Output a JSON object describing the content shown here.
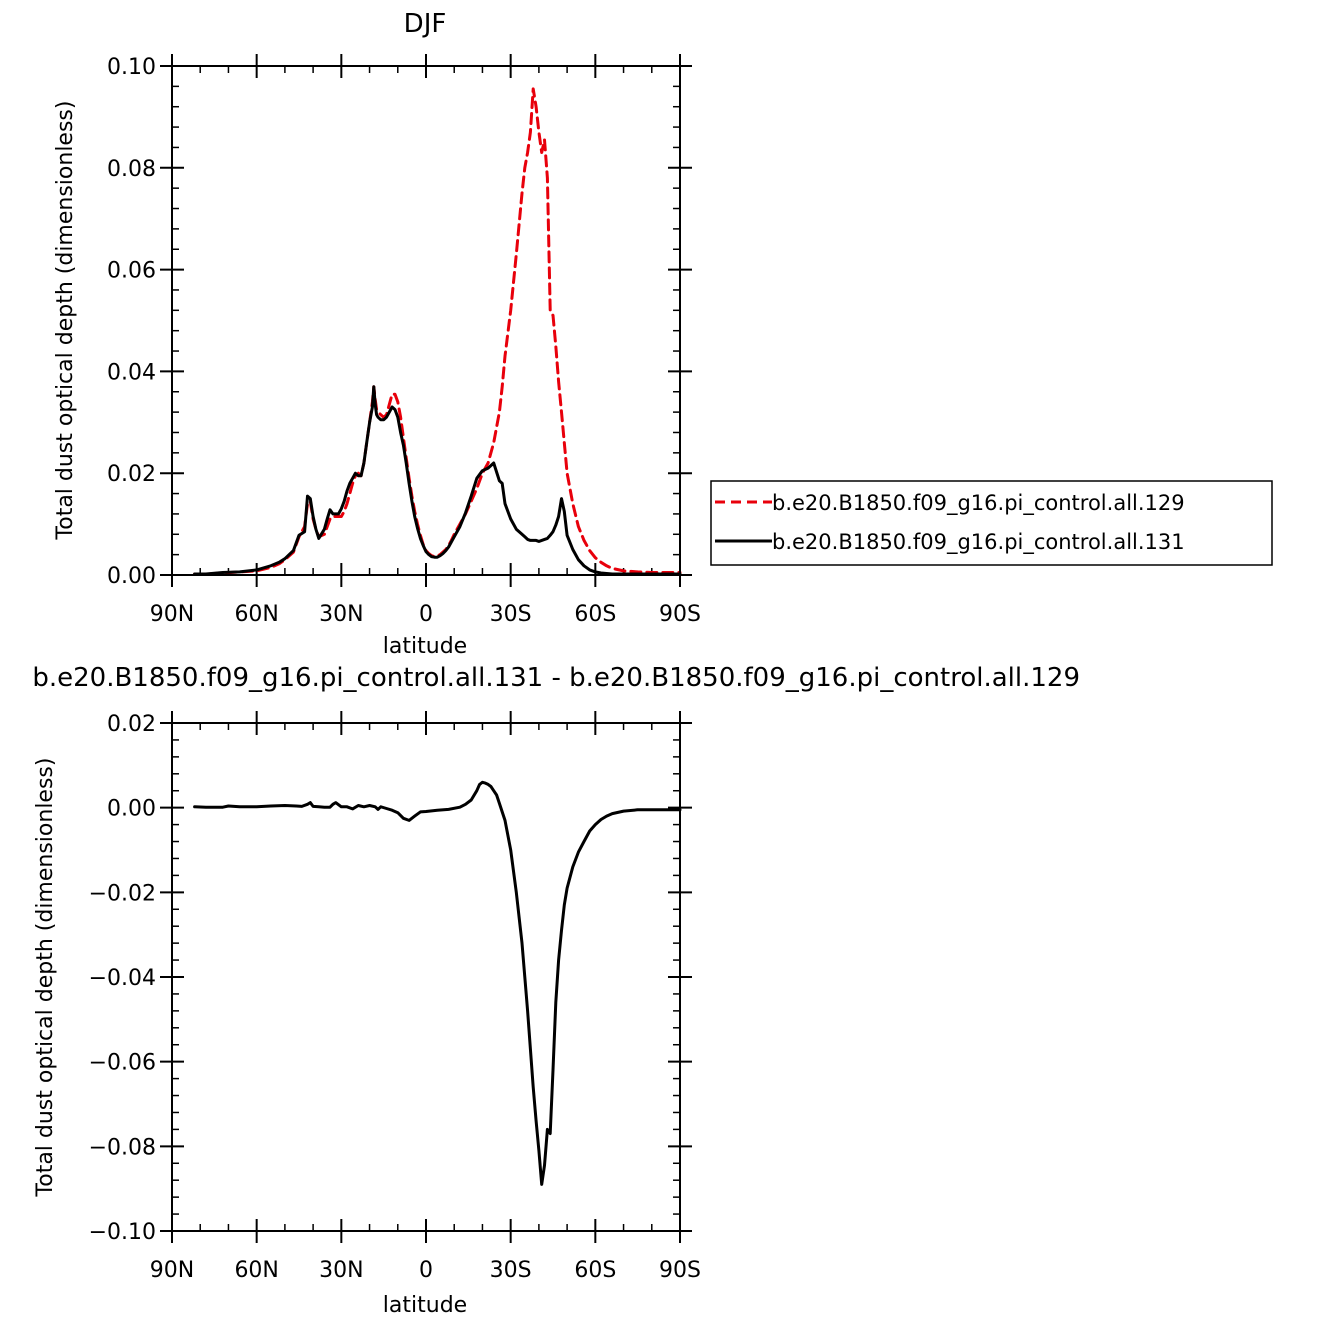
{
  "chart_data": [
    {
      "type": "line",
      "title": "DJF",
      "xlabel": "latitude",
      "ylabel": "Total dust optical depth (dimensionless)",
      "xlim": [
        90,
        -90
      ],
      "ylim": [
        0,
        0.1
      ],
      "x_ticks": [
        90,
        60,
        30,
        0,
        -30,
        -60,
        -90
      ],
      "x_tick_labels": [
        "90N",
        "60N",
        "30N",
        "0",
        "30S",
        "60S",
        "90S"
      ],
      "y_ticks": [
        0,
        0.02,
        0.04,
        0.06,
        0.08,
        0.1
      ],
      "y_tick_labels": [
        "0.00",
        "0.02",
        "0.04",
        "0.06",
        "0.08",
        "0.10"
      ],
      "legend_position": "right",
      "series": [
        {
          "name": "b.e20.B1850.f09_g16.pi_control.all.129",
          "color": "#e8000b",
          "dash": "dashed",
          "x": [
            82,
            78,
            72,
            66,
            60,
            55,
            52,
            50,
            47,
            45,
            43,
            42,
            41,
            40,
            39,
            38,
            36,
            35,
            34,
            33,
            32,
            31,
            30,
            29,
            28,
            27,
            26,
            25,
            24,
            23,
            22,
            21,
            20,
            19,
            18.5,
            18,
            17.5,
            17,
            16,
            15,
            14,
            13,
            12,
            11,
            10,
            9,
            8,
            7,
            6,
            5,
            4,
            3,
            2,
            1,
            0,
            -1,
            -2,
            -3,
            -4,
            -5,
            -6,
            -7,
            -8,
            -9,
            -10,
            -12,
            -14,
            -16,
            -18,
            -20,
            -22,
            -24,
            -26,
            -27,
            -28,
            -30,
            -32,
            -34,
            -35,
            -36,
            -37,
            -38,
            -39,
            -40,
            -41,
            -42,
            -43,
            -44,
            -45,
            -46,
            -47,
            -48,
            -49,
            -50,
            -52,
            -54,
            -56,
            -58,
            -60,
            -62,
            -64,
            -66,
            -70,
            -75,
            -80,
            -85,
            -90
          ],
          "y": [
            0.0002,
            0.0002,
            0.0004,
            0.0006,
            0.0008,
            0.0015,
            0.0022,
            0.003,
            0.0045,
            0.0075,
            0.0095,
            0.014,
            0.0145,
            0.011,
            0.009,
            0.0075,
            0.008,
            0.0095,
            0.011,
            0.0115,
            0.0115,
            0.0115,
            0.0115,
            0.0125,
            0.014,
            0.016,
            0.018,
            0.0195,
            0.02,
            0.0195,
            0.022,
            0.026,
            0.03,
            0.034,
            0.037,
            0.0345,
            0.0325,
            0.032,
            0.0315,
            0.031,
            0.0315,
            0.0335,
            0.0355,
            0.0355,
            0.034,
            0.031,
            0.027,
            0.023,
            0.019,
            0.0155,
            0.0125,
            0.01,
            0.0078,
            0.006,
            0.0048,
            0.0042,
            0.0038,
            0.0036,
            0.0037,
            0.004,
            0.0045,
            0.005,
            0.0058,
            0.0068,
            0.008,
            0.01,
            0.012,
            0.0145,
            0.017,
            0.02,
            0.022,
            0.026,
            0.032,
            0.037,
            0.043,
            0.052,
            0.063,
            0.075,
            0.08,
            0.083,
            0.087,
            0.0955,
            0.092,
            0.087,
            0.083,
            0.0855,
            0.078,
            0.052,
            0.051,
            0.045,
            0.038,
            0.032,
            0.026,
            0.02,
            0.014,
            0.0095,
            0.0068,
            0.0048,
            0.0034,
            0.0025,
            0.0018,
            0.0013,
            0.0008,
            0.0006,
            0.0005,
            0.0005,
            0.0005
          ]
        },
        {
          "name": "b.e20.B1850.f09_g16.pi_control.all.131",
          "color": "#000000",
          "dash": "solid",
          "x": [
            82,
            78,
            72,
            66,
            60,
            55,
            52,
            50,
            47,
            45,
            43,
            42,
            41,
            40,
            39,
            38,
            36,
            35,
            34,
            33,
            32,
            31,
            30,
            29,
            28,
            27,
            26,
            25,
            24,
            23,
            22,
            21,
            20,
            19,
            18.5,
            18,
            17.5,
            17,
            16,
            15,
            14,
            13,
            12,
            11,
            10,
            9,
            8,
            7,
            6,
            5,
            4,
            3,
            2,
            1,
            0,
            -1,
            -2,
            -3,
            -4,
            -5,
            -6,
            -7,
            -8,
            -9,
            -10,
            -12,
            -14,
            -16,
            -18,
            -20,
            -22,
            -24,
            -26,
            -27,
            -28,
            -30,
            -32,
            -34,
            -35,
            -36,
            -37,
            -38,
            -39,
            -40,
            -41,
            -42,
            -43,
            -44,
            -45,
            -46,
            -47,
            -48,
            -49,
            -50,
            -52,
            -54,
            -56,
            -58,
            -60,
            -62,
            -64,
            -66,
            -70,
            -75,
            -80,
            -85,
            -90
          ],
          "y": [
            0.0002,
            0.0002,
            0.0005,
            0.0006,
            0.001,
            0.0018,
            0.0025,
            0.0032,
            0.0048,
            0.0078,
            0.0085,
            0.0155,
            0.015,
            0.0115,
            0.009,
            0.0072,
            0.009,
            0.011,
            0.0128,
            0.012,
            0.012,
            0.012,
            0.013,
            0.0145,
            0.0165,
            0.018,
            0.019,
            0.02,
            0.0195,
            0.0195,
            0.022,
            0.026,
            0.03,
            0.033,
            0.037,
            0.0335,
            0.0315,
            0.031,
            0.0305,
            0.0305,
            0.031,
            0.032,
            0.033,
            0.0325,
            0.031,
            0.028,
            0.0255,
            0.022,
            0.018,
            0.0145,
            0.0115,
            0.0092,
            0.0072,
            0.0058,
            0.0046,
            0.004,
            0.0036,
            0.0035,
            0.0035,
            0.0038,
            0.0042,
            0.0048,
            0.0055,
            0.0065,
            0.0075,
            0.0095,
            0.0122,
            0.0155,
            0.019,
            0.0205,
            0.021,
            0.022,
            0.0185,
            0.018,
            0.014,
            0.011,
            0.009,
            0.008,
            0.0075,
            0.007,
            0.0068,
            0.0068,
            0.0068,
            0.0066,
            0.0068,
            0.007,
            0.0072,
            0.0078,
            0.0085,
            0.0098,
            0.0115,
            0.015,
            0.0125,
            0.0078,
            0.005,
            0.003,
            0.0018,
            0.001,
            0.0006,
            0.0004,
            0.0003,
            0.0002,
            0.0002,
            0.0002,
            0.0002,
            0.0002,
            0.0002
          ]
        }
      ]
    },
    {
      "type": "line",
      "title": "b.e20.B1850.f09_g16.pi_control.all.131 - b.e20.B1850.f09_g16.pi_control.all.129",
      "xlabel": "latitude",
      "ylabel": "Total dust optical depth (dimensionless)",
      "xlim": [
        90,
        -90
      ],
      "ylim": [
        -0.1,
        0.02
      ],
      "x_ticks": [
        90,
        60,
        30,
        0,
        -30,
        -60,
        -90
      ],
      "x_tick_labels": [
        "90N",
        "60N",
        "30N",
        "0",
        "30S",
        "60S",
        "90S"
      ],
      "y_ticks": [
        0.02,
        0,
        -0.02,
        -0.04,
        -0.06,
        -0.08,
        -0.1
      ],
      "y_tick_labels": [
        "0.02",
        "0.00",
        "−0.02",
        "−0.04",
        "−0.06",
        "−0.08",
        "−0.10"
      ],
      "series": [
        {
          "color": "#000000",
          "dash": "solid",
          "x": [
            82,
            78,
            72,
            70,
            66,
            60,
            55,
            50,
            46,
            44,
            42,
            41,
            40,
            38,
            36,
            34,
            33,
            32,
            30,
            28,
            26,
            24,
            22,
            20,
            18,
            17,
            16,
            14,
            12,
            10,
            8,
            6,
            4,
            2,
            0,
            -4,
            -8,
            -12,
            -14,
            -16,
            -18,
            -19,
            -20,
            -21,
            -22,
            -23,
            -24,
            -25,
            -26,
            -28,
            -30,
            -32,
            -34,
            -35,
            -36,
            -37,
            -38,
            -39,
            -40,
            -41,
            -42,
            -43,
            -44,
            -45,
            -46,
            -47,
            -48,
            -49,
            -50,
            -52,
            -54,
            -56,
            -58,
            -60,
            -62,
            -64,
            -66,
            -70,
            -75,
            -80,
            -85,
            -90
          ],
          "y": [
            0.0002,
            0.0001,
            0.0001,
            0.0004,
            0.0002,
            0.0002,
            0.0004,
            0.0005,
            0.0004,
            0.0003,
            0.0008,
            0.0012,
            0.0003,
            0.0002,
            0.0001,
            0.0001,
            0.0008,
            0.0012,
            0.0002,
            0.0002,
            -0.0003,
            0.0005,
            0.0002,
            0.0005,
            0.0002,
            -0.0004,
            0.0002,
            -0.0002,
            -0.0006,
            -0.0012,
            -0.0025,
            -0.003,
            -0.002,
            -0.001,
            -0.0009,
            -0.0006,
            -0.0004,
            0.0001,
            0.0008,
            0.0018,
            0.004,
            0.0055,
            0.006,
            0.0058,
            0.0055,
            0.005,
            0.004,
            0.003,
            0.001,
            -0.003,
            -0.01,
            -0.02,
            -0.032,
            -0.04,
            -0.048,
            -0.057,
            -0.066,
            -0.074,
            -0.081,
            -0.089,
            -0.0845,
            -0.076,
            -0.077,
            -0.062,
            -0.046,
            -0.036,
            -0.029,
            -0.023,
            -0.019,
            -0.014,
            -0.0105,
            -0.008,
            -0.0055,
            -0.004,
            -0.0028,
            -0.002,
            -0.0014,
            -0.0008,
            -0.0005,
            -0.0005,
            -0.0005,
            -0.0005
          ]
        }
      ]
    }
  ]
}
